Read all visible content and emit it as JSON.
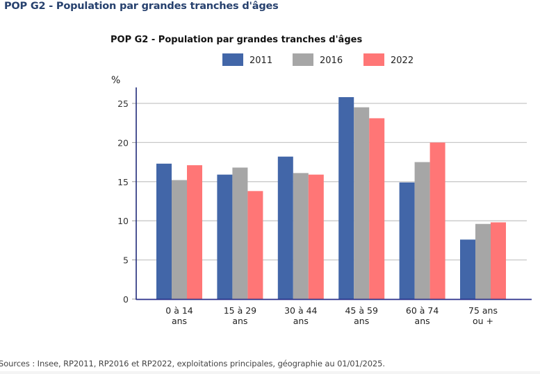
{
  "page": {
    "title": "POP G2 - Population par grandes tranches d'âges",
    "source": "Sources : Insee, RP2011, RP2016 et RP2022, exploitations principales, géographie au 01/01/2025."
  },
  "chart_data": {
    "type": "bar",
    "title": "POP G2 - Population par grandes tranches d'âges",
    "xlabel": "",
    "ylabel": "%",
    "ylim": [
      0,
      27
    ],
    "yticks": [
      0,
      5,
      10,
      15,
      20,
      25
    ],
    "grid": true,
    "legend_position": "top-right",
    "categories": [
      [
        "0 à 14",
        "ans"
      ],
      [
        "15 à 29",
        "ans"
      ],
      [
        "30 à 44",
        "ans"
      ],
      [
        "45 à 59",
        "ans"
      ],
      [
        "60 à 74",
        "ans"
      ],
      [
        "75 ans",
        "ou +"
      ]
    ],
    "series": [
      {
        "name": "2011",
        "color": "#4266a8",
        "values": [
          17.3,
          15.9,
          18.2,
          25.8,
          14.9,
          7.6
        ]
      },
      {
        "name": "2016",
        "color": "#a6a6a6",
        "values": [
          15.2,
          16.8,
          16.1,
          24.5,
          17.5,
          9.6
        ]
      },
      {
        "name": "2022",
        "color": "#ff7676",
        "values": [
          17.1,
          13.8,
          15.9,
          23.1,
          20.0,
          9.8
        ]
      }
    ]
  }
}
